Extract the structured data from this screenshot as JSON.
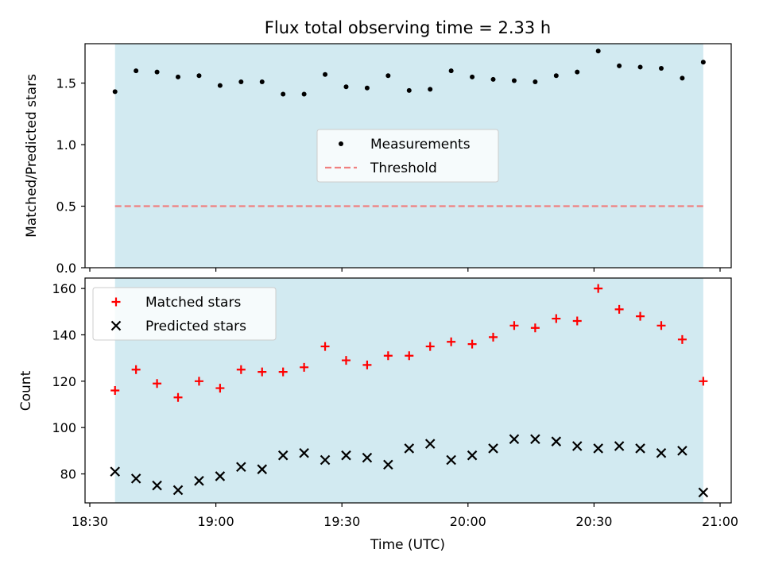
{
  "chart_data": [
    {
      "type": "scatter",
      "title": "Flux total observing time = 2.33 h",
      "xlabel": "",
      "ylabel": "Matched/Predicted stars",
      "ylim": [
        0,
        1.82
      ],
      "yticks": [
        "0.0",
        "0.5",
        "1.0",
        "1.5"
      ],
      "shaded_span": [
        "18:36",
        "20:56"
      ],
      "shade_color": "#add8e6",
      "legend_position": "center",
      "x": [
        "18:36",
        "18:41",
        "18:46",
        "18:51",
        "18:56",
        "19:01",
        "19:06",
        "19:11",
        "19:16",
        "19:21",
        "19:26",
        "19:31",
        "19:36",
        "19:41",
        "19:46",
        "19:51",
        "19:56",
        "20:01",
        "20:06",
        "20:11",
        "20:16",
        "20:21",
        "20:26",
        "20:31",
        "20:36",
        "20:41",
        "20:46",
        "20:51",
        "20:56"
      ],
      "series": [
        {
          "name": "Measurements",
          "marker": "dot",
          "color": "#000000",
          "values": [
            1.43,
            1.6,
            1.59,
            1.55,
            1.56,
            1.48,
            1.51,
            1.51,
            1.41,
            1.41,
            1.57,
            1.47,
            1.46,
            1.56,
            1.44,
            1.45,
            1.6,
            1.55,
            1.53,
            1.52,
            1.51,
            1.56,
            1.59,
            1.76,
            1.64,
            1.63,
            1.62,
            1.54,
            1.67
          ]
        },
        {
          "name": "Threshold",
          "marker": "dashed-line",
          "color": "#f08080",
          "values": [
            0.5,
            0.5
          ]
        }
      ]
    },
    {
      "type": "scatter",
      "title": "",
      "xlabel": "Time (UTC)",
      "ylabel": "Count",
      "ylim": [
        67.5,
        164.5
      ],
      "yticks": [
        "80",
        "100",
        "120",
        "140",
        "160"
      ],
      "xlim": [
        "18:30",
        "21:00"
      ],
      "xticks": [
        "18:30",
        "19:00",
        "19:30",
        "20:00",
        "20:30",
        "21:00"
      ],
      "shaded_span": [
        "18:36",
        "20:56"
      ],
      "shade_color": "#add8e6",
      "legend_position": "upper left",
      "x": [
        "18:36",
        "18:41",
        "18:46",
        "18:51",
        "18:56",
        "19:01",
        "19:06",
        "19:11",
        "19:16",
        "19:21",
        "19:26",
        "19:31",
        "19:36",
        "19:41",
        "19:46",
        "19:51",
        "19:56",
        "20:01",
        "20:06",
        "20:11",
        "20:16",
        "20:21",
        "20:26",
        "20:31",
        "20:36",
        "20:41",
        "20:46",
        "20:51",
        "20:56"
      ],
      "series": [
        {
          "name": "Matched stars",
          "marker": "plus",
          "color": "#ff0000",
          "values": [
            116,
            125,
            119,
            113,
            120,
            117,
            125,
            124,
            124,
            126,
            135,
            129,
            127,
            131,
            131,
            135,
            137,
            136,
            139,
            144,
            143,
            147,
            146,
            160,
            151,
            148,
            144,
            138,
            120
          ]
        },
        {
          "name": "Predicted stars",
          "marker": "x",
          "color": "#000000",
          "values": [
            81,
            78,
            75,
            73,
            77,
            79,
            83,
            82,
            88,
            89,
            86,
            88,
            87,
            84,
            91,
            93,
            86,
            88,
            91,
            95,
            95,
            94,
            92,
            91,
            92,
            91,
            89,
            90,
            72
          ]
        }
      ]
    }
  ]
}
